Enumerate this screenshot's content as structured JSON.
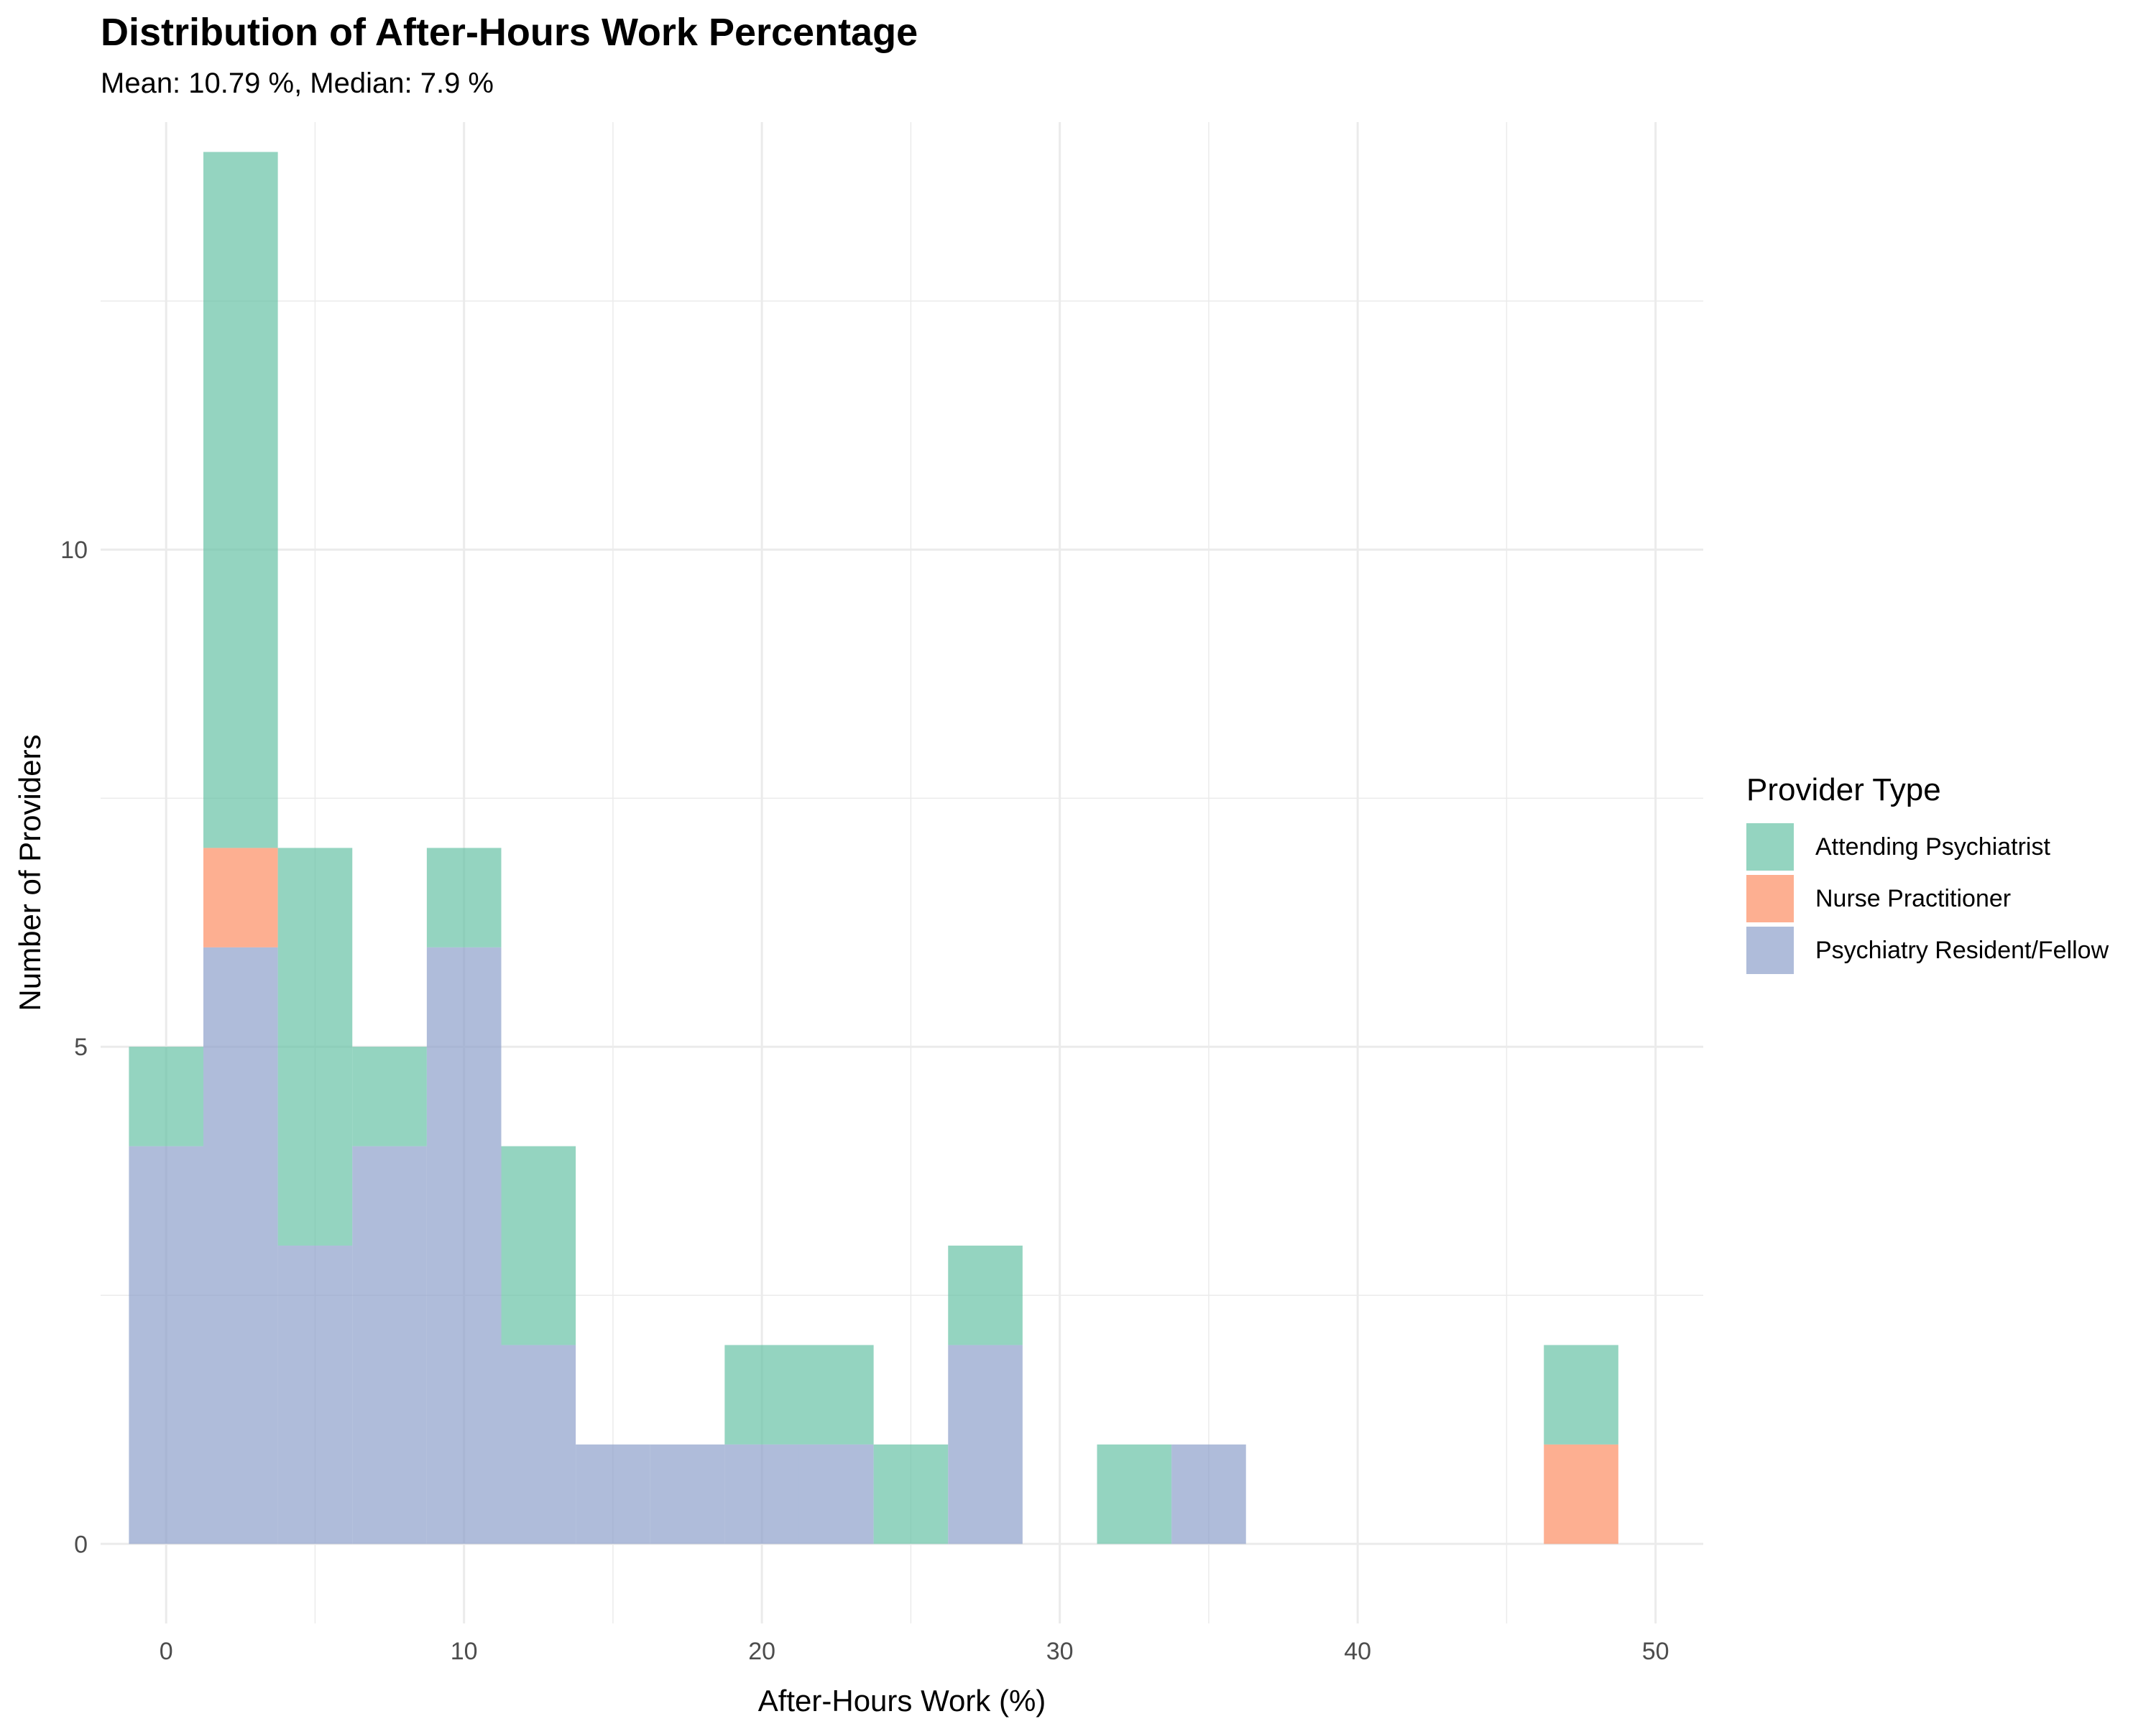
{
  "chart_data": {
    "type": "bar",
    "subtype": "stacked-histogram",
    "title": "Distribution of After-Hours Work Percentage",
    "subtitle": "Mean: 10.79 %, Median: 7.9 %",
    "xlabel": "After-Hours Work (%)",
    "ylabel": "Number of Providers",
    "xlim": [
      -2.2,
      51.6
    ],
    "ylim": [
      -0.8,
      14.3
    ],
    "x_ticks": [
      0,
      10,
      20,
      30,
      40,
      50
    ],
    "y_ticks": [
      0,
      5,
      10
    ],
    "grid": true,
    "legend_title": "Provider Type",
    "legend_position": "right",
    "bin_width": 2.5,
    "bin_centers": [
      0,
      2.5,
      5,
      7.5,
      10,
      12.5,
      15,
      17.5,
      20,
      22.5,
      25,
      27.5,
      30,
      32.5,
      35,
      37.5,
      40,
      42.5,
      45,
      47.5
    ],
    "series": [
      {
        "name": "Psychiatry Resident/Fellow",
        "color": "#8DA0CB",
        "values": [
          4,
          6,
          3,
          4,
          6,
          2,
          1,
          1,
          1,
          1,
          0,
          2,
          0,
          0,
          1,
          0,
          0,
          0,
          0,
          0
        ]
      },
      {
        "name": "Nurse Practitioner",
        "color": "#FC8D62",
        "values": [
          0,
          1,
          0,
          0,
          0,
          0,
          0,
          0,
          0,
          0,
          0,
          0,
          0,
          0,
          0,
          0,
          0,
          0,
          0,
          1
        ]
      },
      {
        "name": "Attending Psychiatrist",
        "color": "#66C2A5",
        "values": [
          1,
          7,
          4,
          1,
          1,
          2,
          0,
          0,
          1,
          1,
          1,
          1,
          0,
          1,
          0,
          0,
          0,
          0,
          0,
          1
        ]
      }
    ],
    "legend_order": [
      "Attending Psychiatrist",
      "Nurse Practitioner",
      "Psychiatry Resident/Fellow"
    ]
  }
}
